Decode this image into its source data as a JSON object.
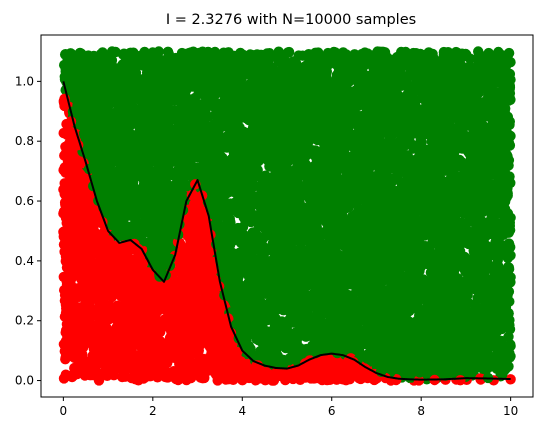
{
  "chart_data": {
    "type": "scatter",
    "title": "I =  2.3276 with N=10000 samples",
    "xlabel": "",
    "ylabel": "",
    "xlim": [
      -0.5,
      10.5
    ],
    "ylim": [
      -0.055,
      1.155
    ],
    "xticks": [
      "0",
      "2",
      "4",
      "6",
      "8",
      "10"
    ],
    "yticks": [
      "0.0",
      "0.2",
      "0.4",
      "0.6",
      "0.8",
      "1.0"
    ],
    "sample_x_range": [
      0,
      10
    ],
    "sample_y_range": [
      0,
      1.1
    ],
    "n_samples": 10000,
    "grid": false,
    "series": [
      {
        "name": "",
        "role": "below-curve samples",
        "color": "#ff0000"
      },
      {
        "name": "",
        "role": "above-curve samples",
        "color": "#008000"
      },
      {
        "name": "",
        "role": "function curve",
        "color": "#000000",
        "x": [
          0,
          0.25,
          0.5,
          0.75,
          1.0,
          1.25,
          1.5,
          1.75,
          2.0,
          2.25,
          2.5,
          2.75,
          3.0,
          3.25,
          3.5,
          3.75,
          4.0,
          4.25,
          4.5,
          4.75,
          5.0,
          5.25,
          5.5,
          5.75,
          6.0,
          6.25,
          6.5,
          6.75,
          7.0,
          7.25,
          7.5,
          7.75,
          8.0,
          8.5,
          9.0,
          9.5,
          10.0
        ],
        "y": [
          1.0,
          0.85,
          0.73,
          0.6,
          0.5,
          0.46,
          0.47,
          0.44,
          0.37,
          0.33,
          0.42,
          0.6,
          0.67,
          0.55,
          0.33,
          0.18,
          0.1,
          0.065,
          0.05,
          0.042,
          0.04,
          0.05,
          0.07,
          0.085,
          0.09,
          0.085,
          0.07,
          0.045,
          0.025,
          0.012,
          0.006,
          0.004,
          0.003,
          0.004,
          0.008,
          0.007,
          0.005
        ]
      }
    ]
  }
}
